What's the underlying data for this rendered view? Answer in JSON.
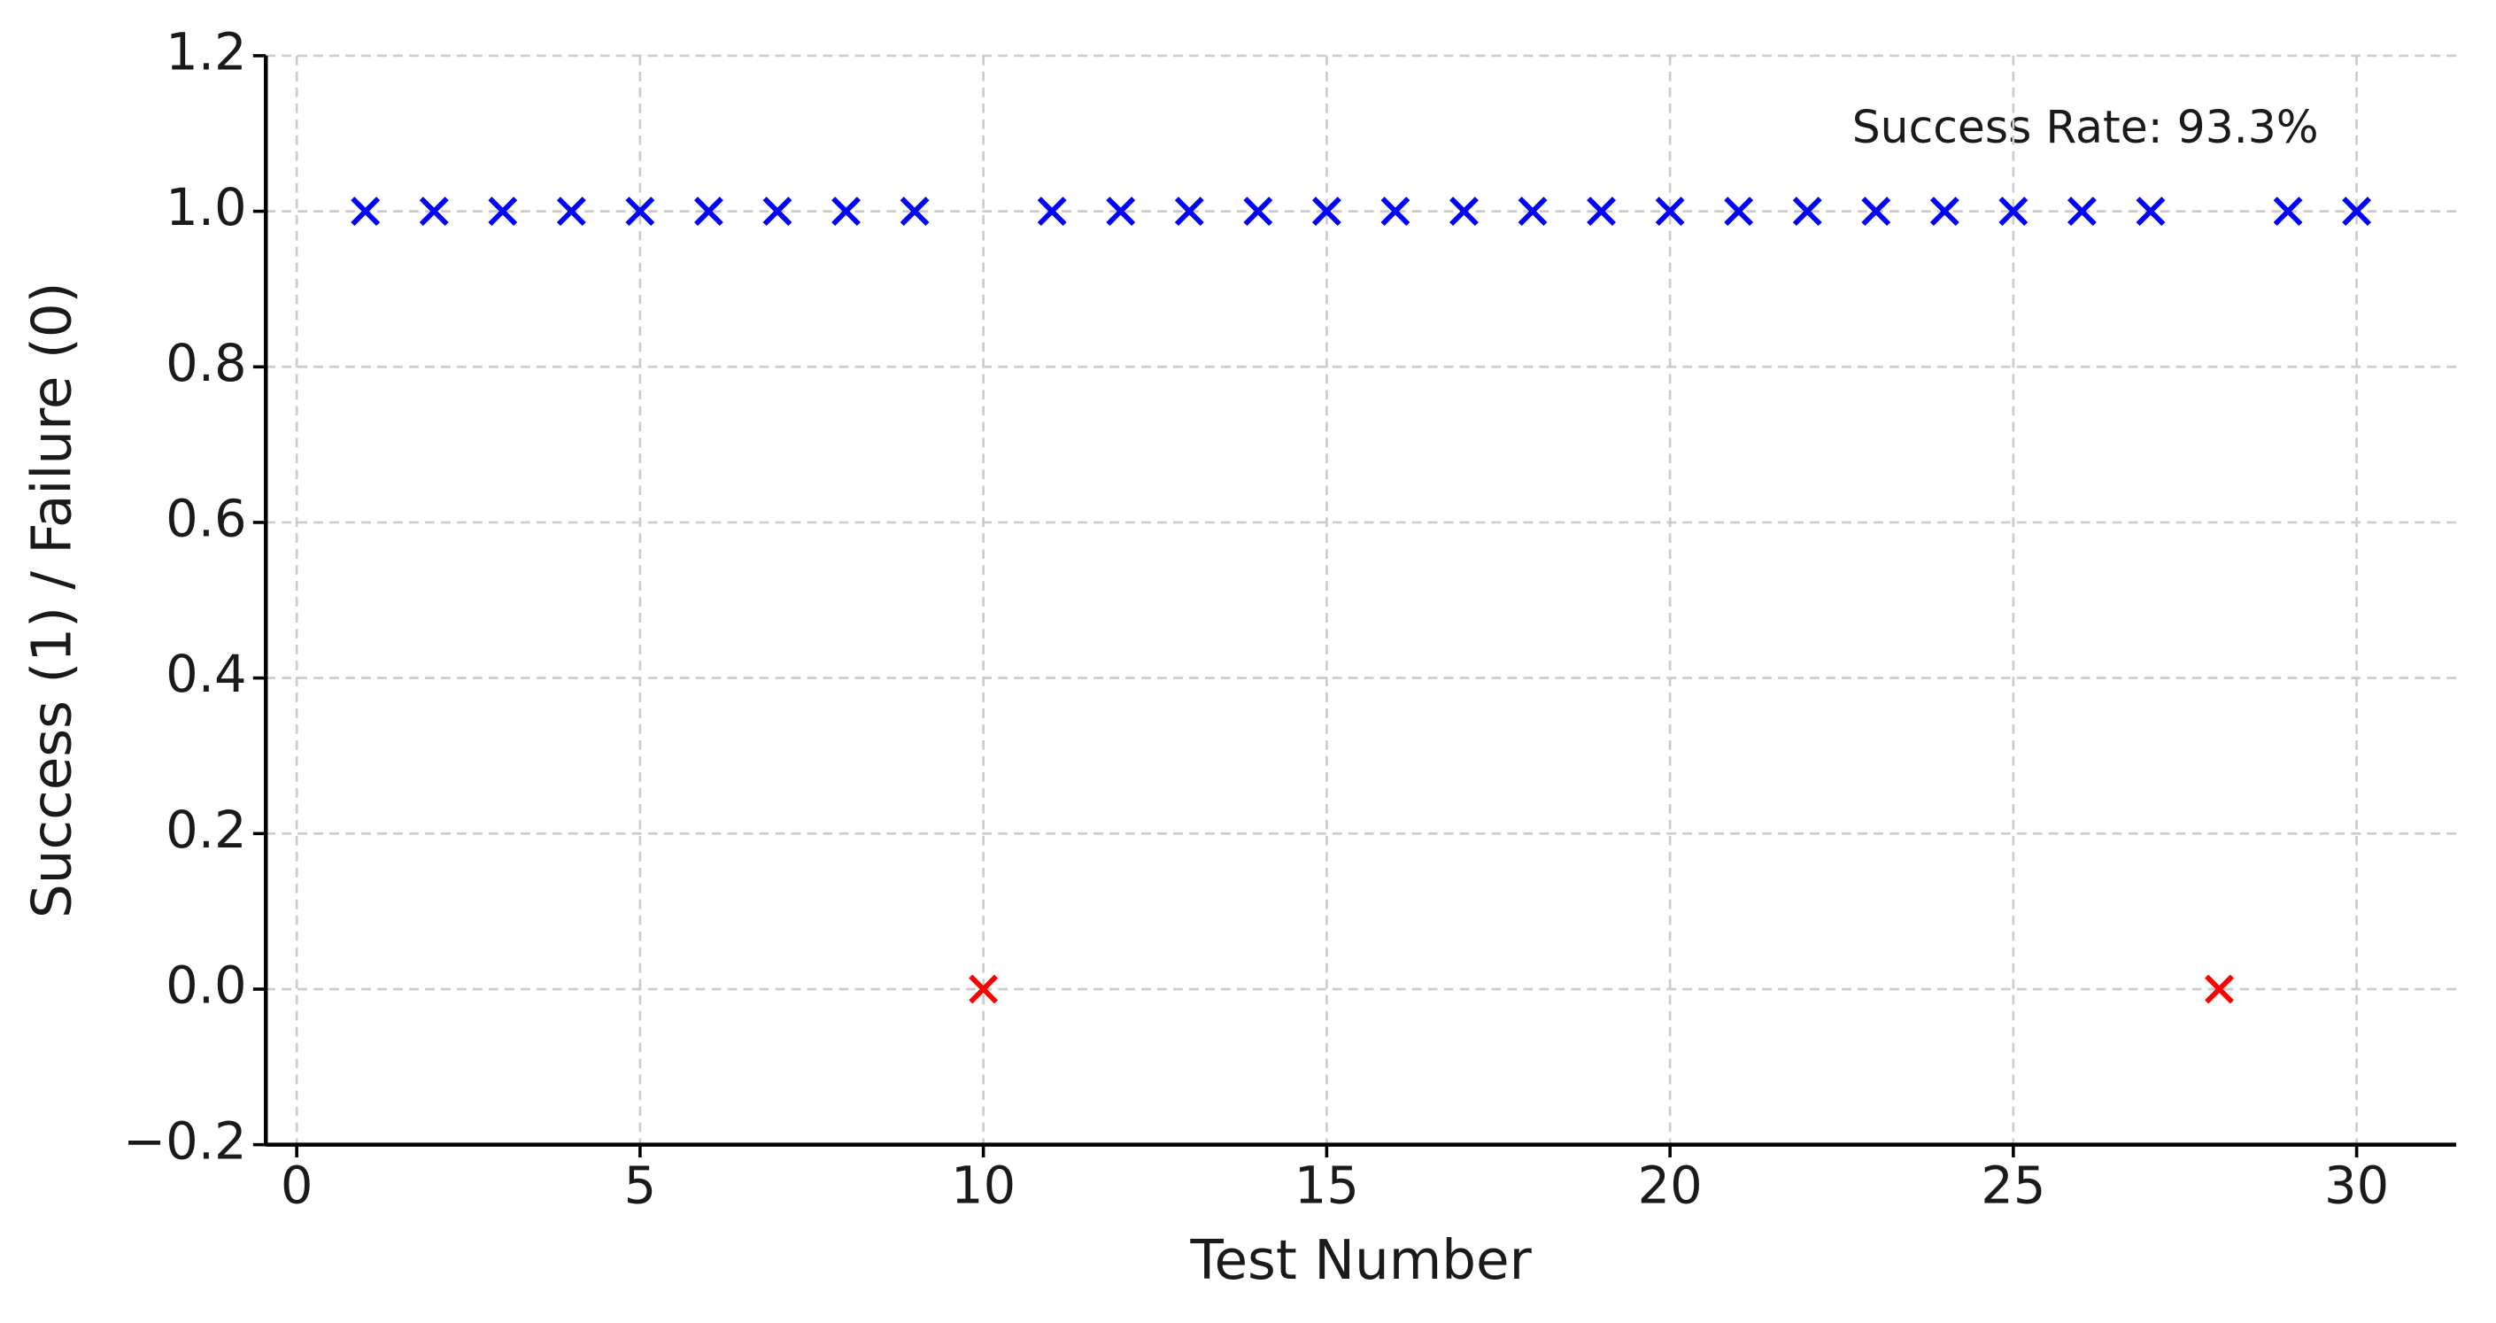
{
  "chart_data": {
    "type": "scatter",
    "x": [
      1,
      2,
      3,
      4,
      5,
      6,
      7,
      8,
      9,
      10,
      11,
      12,
      13,
      14,
      15,
      16,
      17,
      18,
      19,
      20,
      21,
      22,
      23,
      24,
      25,
      26,
      27,
      28,
      29,
      30
    ],
    "values": [
      1,
      1,
      1,
      1,
      1,
      1,
      1,
      1,
      1,
      0,
      1,
      1,
      1,
      1,
      1,
      1,
      1,
      1,
      1,
      1,
      1,
      1,
      1,
      1,
      1,
      1,
      1,
      0,
      1,
      1
    ],
    "marker_colors": [
      "#0000ff",
      "#0000ff",
      "#0000ff",
      "#0000ff",
      "#0000ff",
      "#0000ff",
      "#0000ff",
      "#0000ff",
      "#0000ff",
      "#ff0000",
      "#0000ff",
      "#0000ff",
      "#0000ff",
      "#0000ff",
      "#0000ff",
      "#0000ff",
      "#0000ff",
      "#0000ff",
      "#0000ff",
      "#0000ff",
      "#0000ff",
      "#0000ff",
      "#0000ff",
      "#0000ff",
      "#0000ff",
      "#0000ff",
      "#0000ff",
      "#ff0000",
      "#0000ff",
      "#0000ff"
    ],
    "marker": "x",
    "x_label": "Test Number",
    "y_label": "Success (1) / Failure (0)",
    "annotation": "Success Rate: 93.3%",
    "xlim": [
      -0.45,
      31.45
    ],
    "ylim": [
      -0.2,
      1.2
    ],
    "xticks": [
      0,
      5,
      10,
      15,
      20,
      25,
      30
    ],
    "yticks": [
      {
        "value": -0.2,
        "label": "−0.2"
      },
      {
        "value": 0,
        "label": "0.0"
      },
      0.2,
      0.4,
      0.6,
      0.8,
      {
        "value": 1,
        "label": "1.0"
      },
      1.2
    ],
    "grid": true
  }
}
